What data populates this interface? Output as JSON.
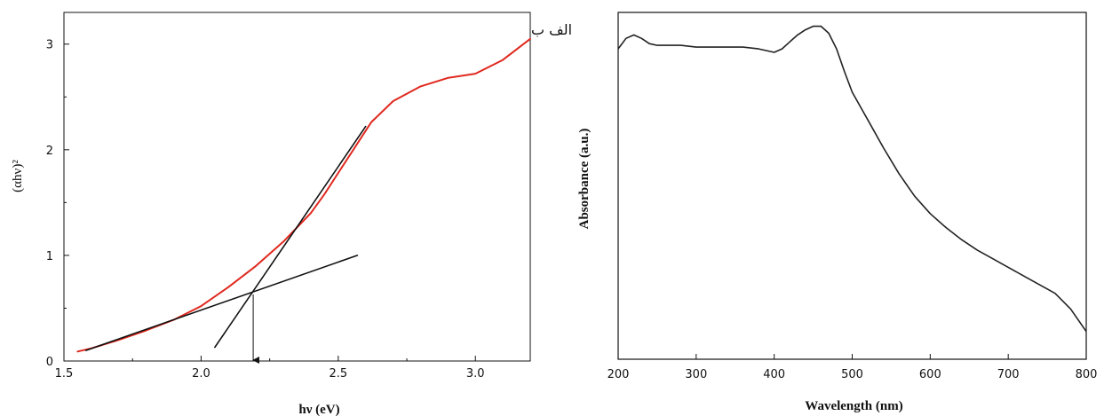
{
  "panel_labels": {
    "text": "الف ب"
  },
  "chart_data": [
    {
      "type": "line",
      "title": "",
      "xlabel": "hν (eV)",
      "ylabel": "(αhν)²",
      "xlim": [
        1.5,
        3.2
      ],
      "ylim": [
        0,
        3.3
      ],
      "xticks": [
        "1.5",
        "2.0",
        "2.5",
        "3.0"
      ],
      "yticks": [
        "0",
        "1",
        "2",
        "3"
      ],
      "grid": false,
      "series": [
        {
          "color": "#e0281e",
          "x": [
            1.55,
            1.6,
            1.7,
            1.8,
            1.9,
            2.0,
            2.1,
            2.2,
            2.3,
            2.4,
            2.45,
            2.5,
            2.55,
            2.6,
            2.62,
            2.7,
            2.8,
            2.9,
            3.0,
            3.1,
            3.2
          ],
          "y": [
            0.09,
            0.12,
            0.2,
            0.29,
            0.39,
            0.52,
            0.7,
            0.9,
            1.13,
            1.4,
            1.58,
            1.78,
            1.98,
            2.18,
            2.26,
            2.46,
            2.6,
            2.68,
            2.72,
            2.85,
            3.05
          ]
        },
        {
          "color": "#111111",
          "x": [
            2.05,
            2.6
          ],
          "y": [
            0.13,
            2.22
          ]
        },
        {
          "color": "#111111",
          "x": [
            1.58,
            2.57
          ],
          "y": [
            0.1,
            1.0
          ]
        }
      ],
      "annotations": [
        {
          "type": "arrow",
          "x": [
            2.19,
            2.19
          ],
          "y": [
            0.63,
            0.0
          ]
        }
      ]
    },
    {
      "type": "line",
      "title": "",
      "xlabel": "Wavelength (nm)",
      "ylabel": "Absorbance (a.u.)",
      "xlim": [
        200,
        800
      ],
      "xticks": [
        "200",
        "300",
        "400",
        "500",
        "600",
        "700",
        "800"
      ],
      "yticks": [],
      "grid": false,
      "series": [
        {
          "color": "#222222",
          "x": [
            200,
            210,
            220,
            230,
            240,
            250,
            260,
            280,
            300,
            320,
            340,
            360,
            380,
            400,
            410,
            420,
            430,
            440,
            450,
            460,
            470,
            480,
            490,
            500,
            520,
            540,
            560,
            580,
            600,
            620,
            640,
            660,
            680,
            700,
            720,
            740,
            760,
            780,
            800
          ],
          "y": [
            0.895,
            0.925,
            0.935,
            0.925,
            0.91,
            0.905,
            0.905,
            0.905,
            0.9,
            0.9,
            0.9,
            0.9,
            0.895,
            0.885,
            0.895,
            0.915,
            0.935,
            0.95,
            0.96,
            0.96,
            0.94,
            0.895,
            0.83,
            0.77,
            0.69,
            0.61,
            0.535,
            0.47,
            0.42,
            0.38,
            0.345,
            0.315,
            0.29,
            0.265,
            0.24,
            0.215,
            0.19,
            0.145,
            0.08
          ]
        }
      ]
    }
  ]
}
